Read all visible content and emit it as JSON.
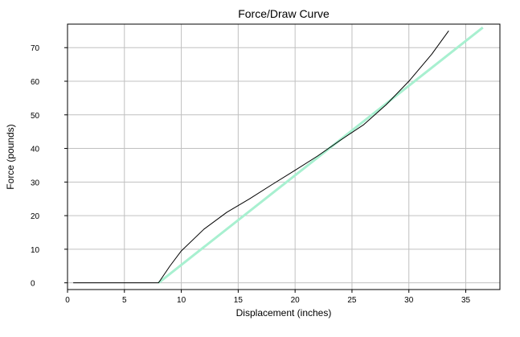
{
  "chart_data": {
    "type": "line",
    "title": "Force/Draw Curve",
    "xlabel": "Displacement (inches)",
    "ylabel": "Force (pounds)",
    "xlim": [
      0,
      38
    ],
    "ylim": [
      -2,
      77
    ],
    "xticks": [
      0,
      5,
      10,
      15,
      20,
      25,
      30,
      35
    ],
    "yticks": [
      0,
      10,
      20,
      30,
      40,
      50,
      60,
      70
    ],
    "grid": true,
    "legend": "none",
    "series": [
      {
        "color": "#000000",
        "points": [
          [
            0.5,
            0
          ],
          [
            8.0,
            0
          ],
          [
            9.0,
            5
          ],
          [
            10.0,
            9.5
          ],
          [
            12.0,
            16
          ],
          [
            14.0,
            21
          ],
          [
            16.0,
            25
          ],
          [
            18.0,
            29.3
          ],
          [
            20.0,
            33.5
          ],
          [
            22.0,
            37.8
          ],
          [
            24.0,
            42.5
          ],
          [
            26.0,
            47
          ],
          [
            28.0,
            53
          ],
          [
            30.0,
            60
          ],
          [
            32.0,
            68
          ],
          [
            33.5,
            75
          ]
        ]
      },
      {
        "color": "#a8f0d0",
        "points": [
          [
            8.0,
            0
          ],
          [
            36.5,
            76
          ]
        ]
      }
    ]
  }
}
